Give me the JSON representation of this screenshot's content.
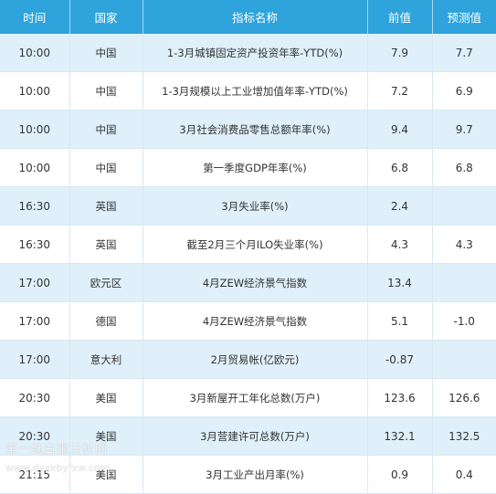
{
  "table": {
    "headers": [
      "时间",
      "国家",
      "指标名称",
      "前值",
      "预测值"
    ],
    "rows": [
      {
        "time": "10:00",
        "country": "中国",
        "name": "1-3月城镇固定资产投资年率-YTD(%)",
        "prev": "7.9",
        "forecast": "7.7"
      },
      {
        "time": "10:00",
        "country": "中国",
        "name": "1-3月规模以上工业增加值年率-YTD(%)",
        "prev": "7.2",
        "forecast": "6.9"
      },
      {
        "time": "10:00",
        "country": "中国",
        "name": "3月社会消费品零售总额年率(%)",
        "prev": "9.4",
        "forecast": "9.7"
      },
      {
        "time": "10:00",
        "country": "中国",
        "name": "第一季度GDP年率(%)",
        "prev": "6.8",
        "forecast": "6.8"
      },
      {
        "time": "16:30",
        "country": "英国",
        "name": "3月失业率(%)",
        "prev": "2.4",
        "forecast": ""
      },
      {
        "time": "16:30",
        "country": "英国",
        "name": "截至2月三个月ILO失业率(%)",
        "prev": "4.3",
        "forecast": "4.3"
      },
      {
        "time": "17:00",
        "country": "欧元区",
        "name": "4月ZEW经济景气指数",
        "prev": "13.4",
        "forecast": ""
      },
      {
        "time": "17:00",
        "country": "德国",
        "name": "4月ZEW经济景气指数",
        "prev": "5.1",
        "forecast": "-1.0"
      },
      {
        "time": "17:00",
        "country": "意大利",
        "name": "2月贸易帐(亿欧元)",
        "prev": "-0.87",
        "forecast": ""
      },
      {
        "time": "20:30",
        "country": "美国",
        "name": "3月新屋开工年化总数(万户)",
        "prev": "123.6",
        "forecast": "126.6"
      },
      {
        "time": "20:30",
        "country": "美国",
        "name": "3月营建许可总数(万户)",
        "prev": "132.1",
        "forecast": "132.5"
      },
      {
        "time": "21:15",
        "country": "美国",
        "name": "3月工业产出月率(%)",
        "prev": "0.9",
        "forecast": "0.4"
      }
    ]
  },
  "watermark": {
    "text": "第一纸白银分析网",
    "url": "www.dyzxbyfxw.com"
  }
}
